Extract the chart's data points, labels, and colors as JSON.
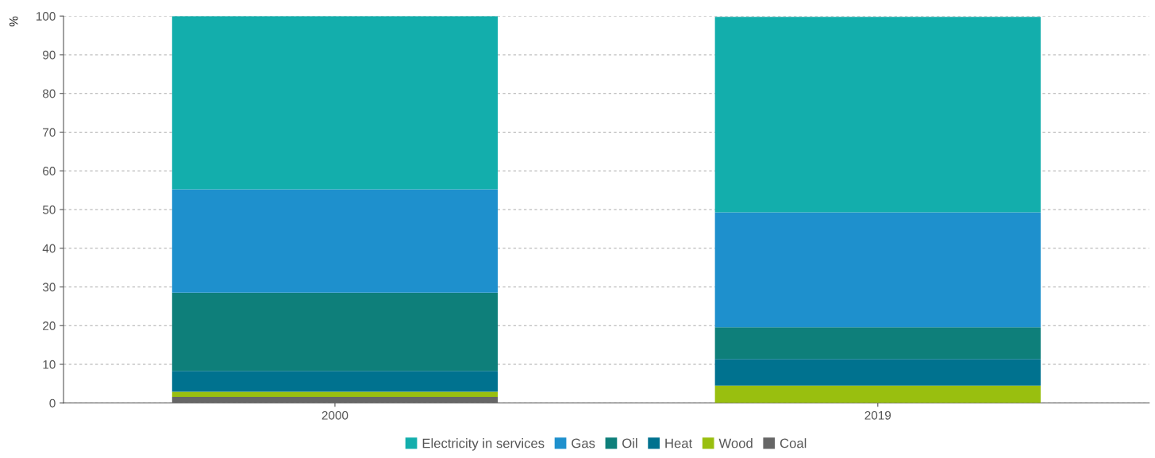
{
  "chart_data": {
    "type": "bar",
    "stacked": true,
    "ylabel": "%",
    "categories": [
      "2000",
      "2019"
    ],
    "series": [
      {
        "name": "Coal",
        "color": "#666666",
        "values": [
          1.6,
          null
        ]
      },
      {
        "name": "Wood",
        "color": "#99bf0f",
        "values": [
          1.3,
          4.5
        ]
      },
      {
        "name": "Heat",
        "color": "#00728f",
        "values": [
          5.4,
          6.9
        ]
      },
      {
        "name": "Oil",
        "color": "#0e7f7a",
        "values": [
          20.2,
          8.2
        ]
      },
      {
        "name": "Gas",
        "color": "#1e90cd",
        "values": [
          26.7,
          29.7
        ]
      },
      {
        "name": "Electricity in services",
        "color": "#13aeac",
        "values": [
          44.8,
          50.5
        ]
      }
    ],
    "ylim": [
      0,
      100
    ],
    "yticks": [
      0,
      10,
      20,
      30,
      40,
      50,
      60,
      70,
      80,
      90,
      100
    ],
    "grid": "y",
    "legend": "bottom"
  }
}
